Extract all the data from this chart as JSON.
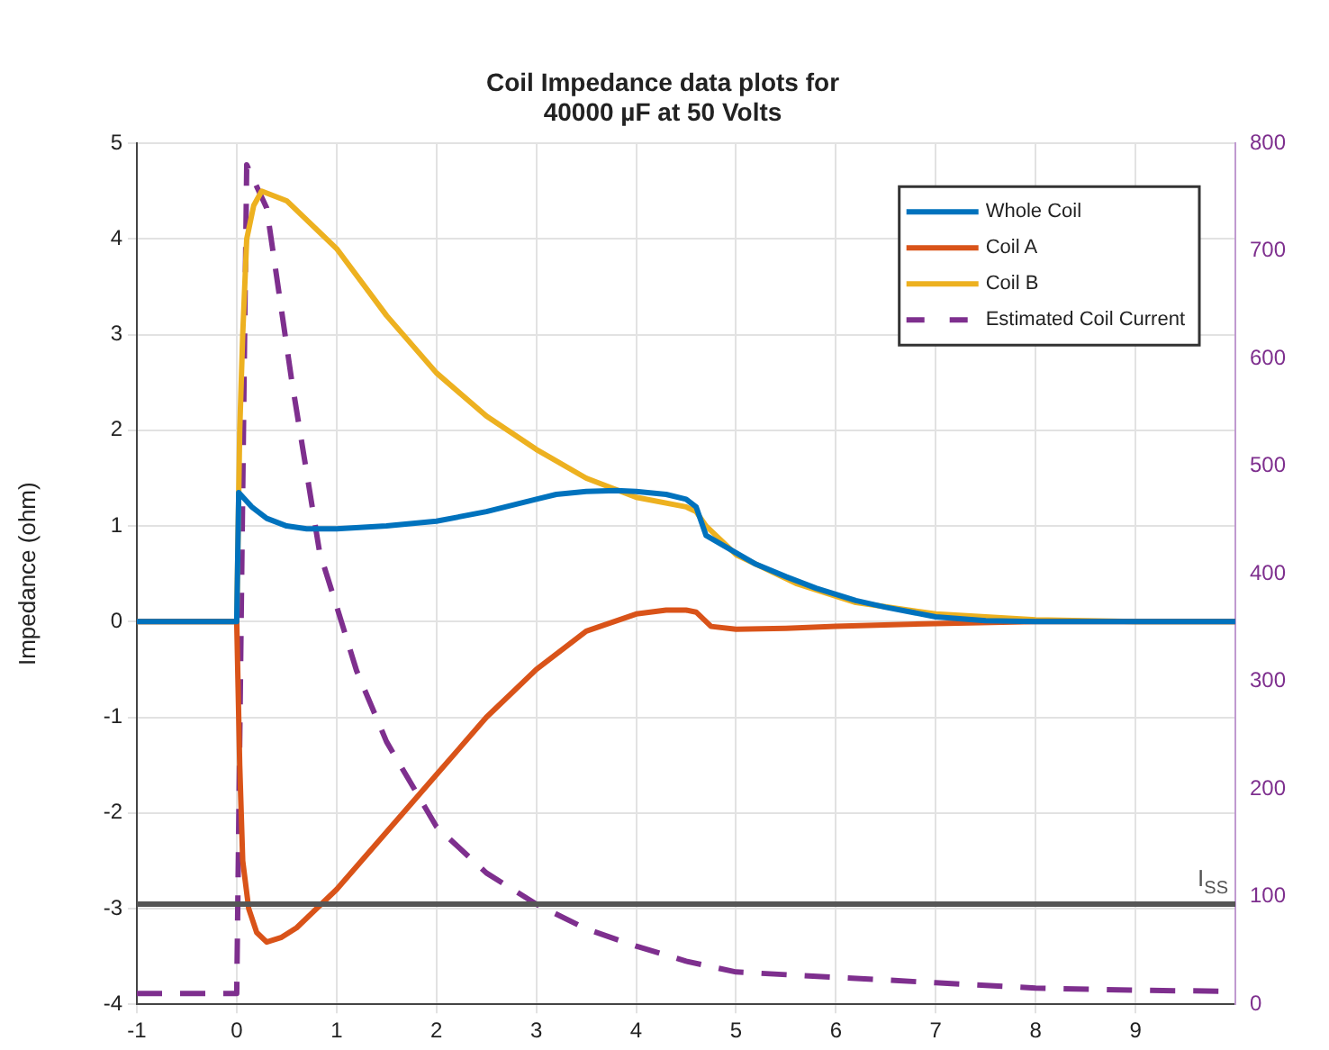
{
  "chart_data": {
    "type": "line",
    "title": "Coil Impedance data plots for\n40000 µF at 50 Volts",
    "ylabel": "Impedance (ohm)",
    "xlim": [
      -1,
      10
    ],
    "xticks": [
      -1,
      0,
      1,
      2,
      3,
      4,
      5,
      6,
      7,
      8,
      9
    ],
    "ylim": [
      -4,
      5
    ],
    "yticks": [
      -4,
      -3,
      -2,
      -1,
      0,
      1,
      2,
      3,
      4,
      5
    ],
    "y2lim": [
      0,
      800
    ],
    "y2ticks": [
      0,
      100,
      200,
      300,
      400,
      500,
      600,
      700,
      800
    ],
    "grid": true,
    "legend": "top right",
    "marker": "none",
    "ref_lines": [
      {
        "axis": "y2",
        "value": 93,
        "label": "I$_{SS}$",
        "color": "#555555"
      }
    ],
    "series": [
      {
        "name": "Whole Coil",
        "color": "#0072bd",
        "x": [
          -1,
          0,
          0.02,
          0.15,
          0.3,
          0.5,
          0.7,
          1,
          1.5,
          2,
          2.5,
          3,
          3.2,
          3.5,
          3.8,
          4,
          4.3,
          4.5,
          4.6,
          4.7,
          5,
          5.2,
          5.5,
          5.8,
          6.2,
          6.5,
          7,
          7.5,
          8,
          9,
          10
        ],
        "values": [
          0,
          0,
          1.35,
          1.2,
          1.08,
          1.0,
          0.97,
          0.97,
          1.0,
          1.05,
          1.15,
          1.28,
          1.33,
          1.36,
          1.37,
          1.36,
          1.33,
          1.28,
          1.2,
          0.9,
          0.72,
          0.6,
          0.47,
          0.35,
          0.22,
          0.15,
          0.05,
          0.01,
          0,
          0,
          0
        ]
      },
      {
        "name": "Coil A",
        "color": "#d95319",
        "x": [
          -1,
          0,
          0.03,
          0.06,
          0.12,
          0.2,
          0.3,
          0.45,
          0.6,
          1,
          1.5,
          2,
          2.5,
          3,
          3.5,
          4,
          4.3,
          4.5,
          4.6,
          4.75,
          5,
          5.5,
          6,
          7,
          8,
          9,
          10
        ],
        "values": [
          0,
          0,
          -1.5,
          -2.5,
          -3.0,
          -3.25,
          -3.35,
          -3.3,
          -3.2,
          -2.8,
          -2.2,
          -1.6,
          -1.0,
          -0.5,
          -0.1,
          0.08,
          0.12,
          0.12,
          0.1,
          -0.05,
          -0.08,
          -0.07,
          -0.05,
          -0.02,
          0,
          0,
          0
        ]
      },
      {
        "name": "Coil B",
        "color": "#edb120",
        "x": [
          -1,
          0,
          0.03,
          0.06,
          0.1,
          0.17,
          0.25,
          0.5,
          1,
          1.5,
          2,
          2.5,
          3,
          3.5,
          4,
          4.5,
          4.6,
          4.7,
          5,
          5.3,
          5.6,
          6.2,
          7,
          8,
          9,
          10
        ],
        "values": [
          0,
          0,
          2,
          3,
          4,
          4.35,
          4.5,
          4.4,
          3.9,
          3.2,
          2.6,
          2.15,
          1.8,
          1.5,
          1.3,
          1.2,
          1.15,
          1.0,
          0.7,
          0.55,
          0.4,
          0.2,
          0.08,
          0.02,
          0,
          0
        ]
      },
      {
        "name": "Estimated Coil Current",
        "color": "#7e2f8e",
        "axis": "y2",
        "line_style": "dashed",
        "x": [
          -1,
          -0.1,
          0,
          0.05,
          0.1,
          0.3,
          0.55,
          0.83,
          1,
          1.2,
          1.5,
          2,
          2.5,
          3,
          3.5,
          4,
          4.5,
          5,
          6,
          7,
          8,
          9,
          10
        ],
        "values": [
          10,
          10,
          10,
          400,
          780,
          740,
          580,
          420,
          370,
          310,
          244,
          165,
          122,
          93,
          70,
          54,
          40,
          30,
          25,
          20,
          15,
          13,
          12
        ]
      }
    ]
  }
}
